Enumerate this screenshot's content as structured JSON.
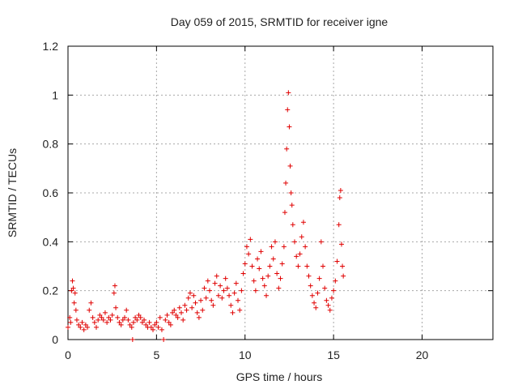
{
  "chart_data": {
    "type": "scatter",
    "title": "Day 059 of 2015, SRMTID for receiver igne",
    "xlabel": "GPS time / hours",
    "ylabel": "SRMTID / TECUs",
    "xlim": [
      0,
      24
    ],
    "ylim": [
      0,
      1.2
    ],
    "x_ticks": [
      0,
      5,
      10,
      15,
      20
    ],
    "x_tick_labels": [
      "0",
      "5",
      "10",
      "15",
      "20"
    ],
    "y_ticks": [
      0,
      0.2,
      0.4,
      0.6,
      0.8,
      1,
      1.2
    ],
    "y_tick_labels": [
      "0",
      "0.2",
      "0.4",
      "0.6",
      "0.8",
      "1",
      "1.2"
    ],
    "grid": true,
    "marker": "+",
    "color": "#e00000",
    "series": [
      {
        "name": "SRMTID",
        "points": [
          [
            0.0,
            0.05
          ],
          [
            0.1,
            0.09
          ],
          [
            0.15,
            0.07
          ],
          [
            0.2,
            0.2
          ],
          [
            0.25,
            0.24
          ],
          [
            0.3,
            0.21
          ],
          [
            0.35,
            0.15
          ],
          [
            0.4,
            0.19
          ],
          [
            0.45,
            0.12
          ],
          [
            0.5,
            0.08
          ],
          [
            0.6,
            0.06
          ],
          [
            0.7,
            0.05
          ],
          [
            0.8,
            0.07
          ],
          [
            0.9,
            0.04
          ],
          [
            1.0,
            0.06
          ],
          [
            1.1,
            0.05
          ],
          [
            1.2,
            0.12
          ],
          [
            1.3,
            0.15
          ],
          [
            1.4,
            0.09
          ],
          [
            1.5,
            0.07
          ],
          [
            1.6,
            0.05
          ],
          [
            1.7,
            0.08
          ],
          [
            1.8,
            0.1
          ],
          [
            1.9,
            0.09
          ],
          [
            2.0,
            0.08
          ],
          [
            2.1,
            0.11
          ],
          [
            2.2,
            0.07
          ],
          [
            2.3,
            0.09
          ],
          [
            2.4,
            0.08
          ],
          [
            2.5,
            0.1
          ],
          [
            2.6,
            0.19
          ],
          [
            2.65,
            0.22
          ],
          [
            2.7,
            0.13
          ],
          [
            2.8,
            0.09
          ],
          [
            2.9,
            0.07
          ],
          [
            3.0,
            0.06
          ],
          [
            3.1,
            0.08
          ],
          [
            3.2,
            0.09
          ],
          [
            3.3,
            0.12
          ],
          [
            3.4,
            0.08
          ],
          [
            3.5,
            0.06
          ],
          [
            3.6,
            0.05
          ],
          [
            3.65,
            0.0
          ],
          [
            3.7,
            0.07
          ],
          [
            3.8,
            0.09
          ],
          [
            3.9,
            0.08
          ],
          [
            4.0,
            0.1
          ],
          [
            4.1,
            0.09
          ],
          [
            4.2,
            0.07
          ],
          [
            4.3,
            0.08
          ],
          [
            4.4,
            0.06
          ],
          [
            4.5,
            0.05
          ],
          [
            4.6,
            0.07
          ],
          [
            4.7,
            0.05
          ],
          [
            4.8,
            0.04
          ],
          [
            4.9,
            0.06
          ],
          [
            5.0,
            0.07
          ],
          [
            5.1,
            0.05
          ],
          [
            5.2,
            0.09
          ],
          [
            5.3,
            0.04
          ],
          [
            5.4,
            0.0
          ],
          [
            5.5,
            0.08
          ],
          [
            5.6,
            0.1
          ],
          [
            5.7,
            0.07
          ],
          [
            5.8,
            0.06
          ],
          [
            5.9,
            0.11
          ],
          [
            6.0,
            0.12
          ],
          [
            6.1,
            0.1
          ],
          [
            6.2,
            0.09
          ],
          [
            6.3,
            0.13
          ],
          [
            6.4,
            0.11
          ],
          [
            6.5,
            0.08
          ],
          [
            6.6,
            0.14
          ],
          [
            6.7,
            0.12
          ],
          [
            6.8,
            0.17
          ],
          [
            6.9,
            0.19
          ],
          [
            7.0,
            0.13
          ],
          [
            7.1,
            0.18
          ],
          [
            7.2,
            0.15
          ],
          [
            7.3,
            0.11
          ],
          [
            7.4,
            0.09
          ],
          [
            7.5,
            0.16
          ],
          [
            7.6,
            0.12
          ],
          [
            7.7,
            0.21
          ],
          [
            7.8,
            0.17
          ],
          [
            7.9,
            0.24
          ],
          [
            8.0,
            0.2
          ],
          [
            8.1,
            0.16
          ],
          [
            8.2,
            0.14
          ],
          [
            8.3,
            0.23
          ],
          [
            8.4,
            0.26
          ],
          [
            8.5,
            0.18
          ],
          [
            8.6,
            0.22
          ],
          [
            8.7,
            0.17
          ],
          [
            8.8,
            0.2
          ],
          [
            8.9,
            0.25
          ],
          [
            9.0,
            0.21
          ],
          [
            9.1,
            0.18
          ],
          [
            9.2,
            0.14
          ],
          [
            9.3,
            0.11
          ],
          [
            9.4,
            0.19
          ],
          [
            9.5,
            0.23
          ],
          [
            9.6,
            0.16
          ],
          [
            9.7,
            0.12
          ],
          [
            9.8,
            0.2
          ],
          [
            9.9,
            0.27
          ],
          [
            10.0,
            0.31
          ],
          [
            10.1,
            0.38
          ],
          [
            10.2,
            0.35
          ],
          [
            10.3,
            0.41
          ],
          [
            10.4,
            0.3
          ],
          [
            10.5,
            0.24
          ],
          [
            10.6,
            0.2
          ],
          [
            10.7,
            0.33
          ],
          [
            10.8,
            0.29
          ],
          [
            10.9,
            0.36
          ],
          [
            11.0,
            0.25
          ],
          [
            11.1,
            0.22
          ],
          [
            11.2,
            0.18
          ],
          [
            11.3,
            0.26
          ],
          [
            11.4,
            0.3
          ],
          [
            11.5,
            0.38
          ],
          [
            11.6,
            0.33
          ],
          [
            11.7,
            0.4
          ],
          [
            11.8,
            0.27
          ],
          [
            11.9,
            0.21
          ],
          [
            12.0,
            0.25
          ],
          [
            12.1,
            0.31
          ],
          [
            12.2,
            0.38
          ],
          [
            12.25,
            0.52
          ],
          [
            12.3,
            0.64
          ],
          [
            12.35,
            0.78
          ],
          [
            12.4,
            0.94
          ],
          [
            12.45,
            1.01
          ],
          [
            12.5,
            0.87
          ],
          [
            12.55,
            0.71
          ],
          [
            12.6,
            0.6
          ],
          [
            12.65,
            0.55
          ],
          [
            12.7,
            0.47
          ],
          [
            12.8,
            0.4
          ],
          [
            12.9,
            0.34
          ],
          [
            13.0,
            0.3
          ],
          [
            13.1,
            0.35
          ],
          [
            13.2,
            0.42
          ],
          [
            13.3,
            0.48
          ],
          [
            13.4,
            0.38
          ],
          [
            13.5,
            0.3
          ],
          [
            13.6,
            0.26
          ],
          [
            13.7,
            0.22
          ],
          [
            13.8,
            0.18
          ],
          [
            13.9,
            0.15
          ],
          [
            14.0,
            0.13
          ],
          [
            14.1,
            0.19
          ],
          [
            14.2,
            0.25
          ],
          [
            14.3,
            0.4
          ],
          [
            14.4,
            0.3
          ],
          [
            14.5,
            0.21
          ],
          [
            14.6,
            0.16
          ],
          [
            14.7,
            0.14
          ],
          [
            14.8,
            0.12
          ],
          [
            14.9,
            0.17
          ],
          [
            15.0,
            0.2
          ],
          [
            15.1,
            0.24
          ],
          [
            15.2,
            0.32
          ],
          [
            15.3,
            0.47
          ],
          [
            15.35,
            0.58
          ],
          [
            15.4,
            0.61
          ],
          [
            15.45,
            0.39
          ],
          [
            15.5,
            0.3
          ],
          [
            15.55,
            0.26
          ]
        ]
      }
    ]
  }
}
